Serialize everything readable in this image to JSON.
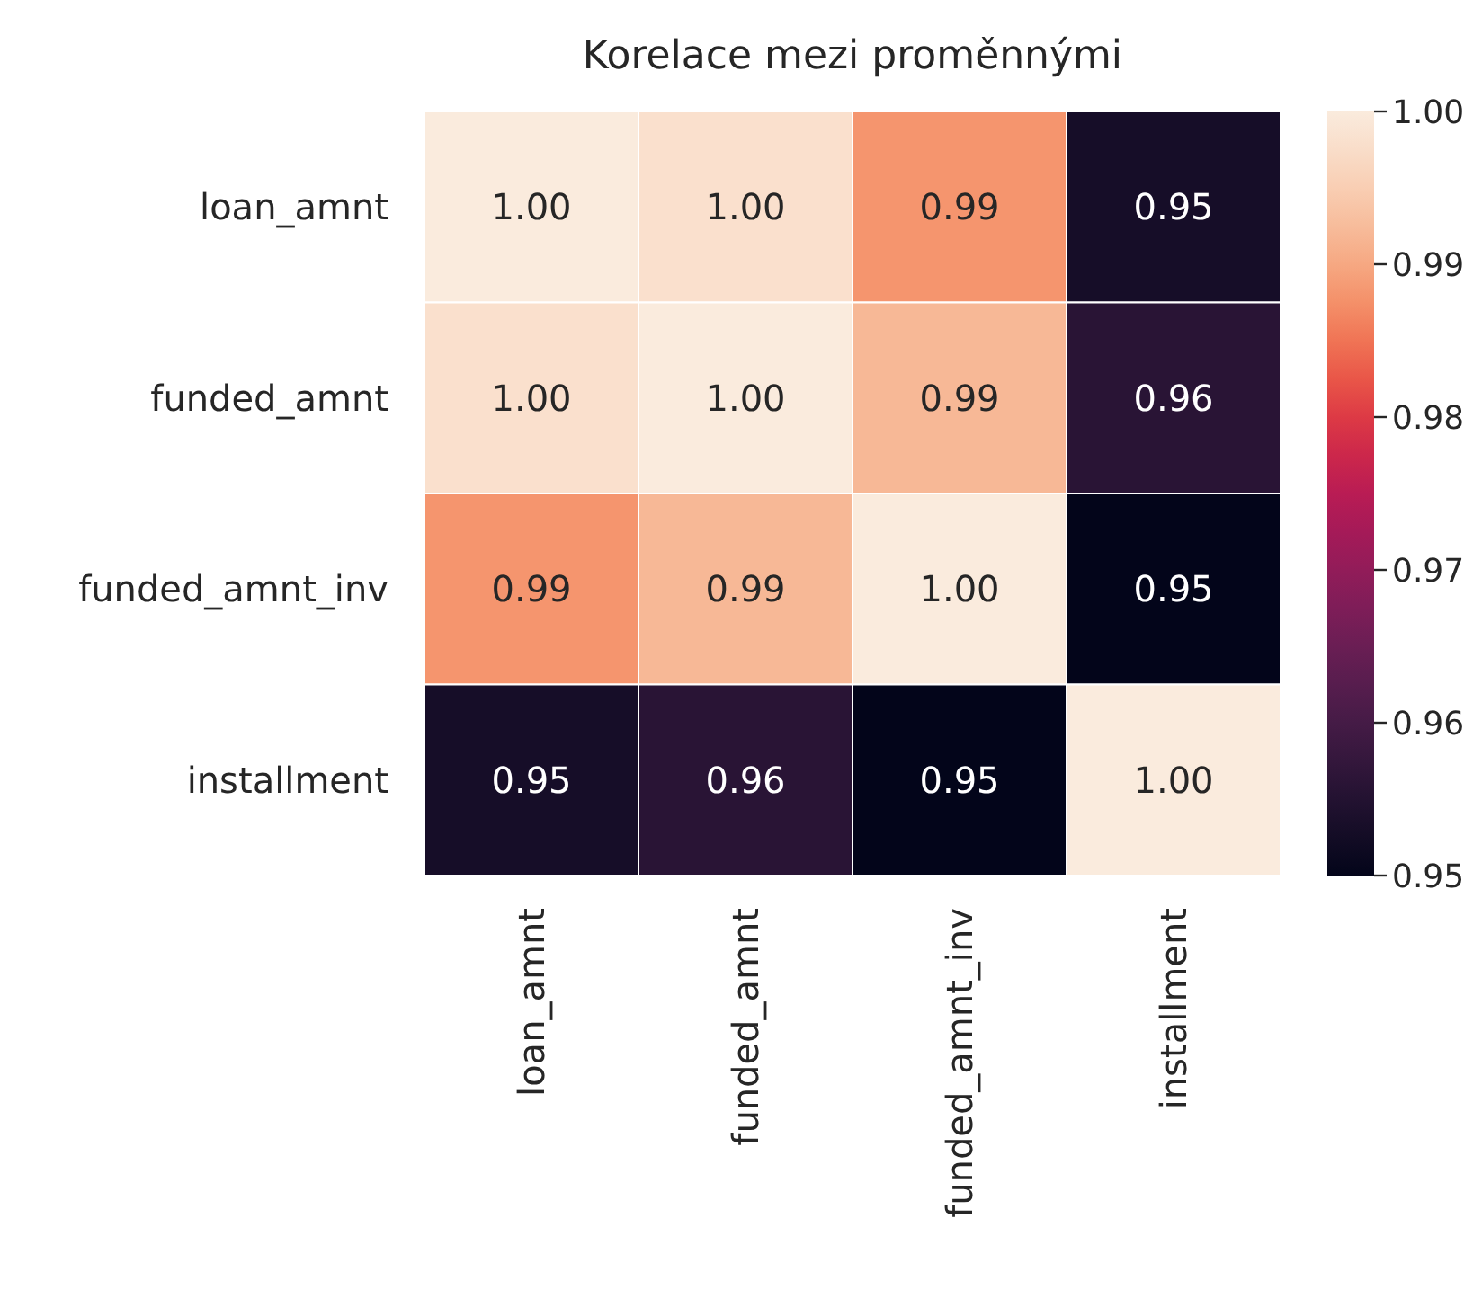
{
  "chart_data": {
    "type": "heatmap",
    "title": "Korelace mezi proměnnými",
    "categories": [
      "loan_amnt",
      "funded_amnt",
      "funded_amnt_inv",
      "installment"
    ],
    "y_categories": [
      "loan_amnt",
      "funded_amnt",
      "funded_amnt_inv",
      "installment"
    ],
    "cells": [
      [
        1.0,
        0.998,
        0.988,
        0.953
      ],
      [
        0.998,
        1.0,
        0.992,
        0.956
      ],
      [
        0.988,
        0.992,
        1.0,
        0.95
      ],
      [
        0.953,
        0.956,
        0.95,
        1.0
      ]
    ],
    "cell_labels": [
      [
        "1.00",
        "1.00",
        "0.99",
        "0.95"
      ],
      [
        "1.00",
        "1.00",
        "0.99",
        "0.96"
      ],
      [
        "0.99",
        "0.99",
        "1.00",
        "0.95"
      ],
      [
        "0.95",
        "0.96",
        "0.95",
        "1.00"
      ]
    ],
    "clim": [
      0.95,
      1.0
    ],
    "cticks": [
      {
        "value": 0.95,
        "label": "0.95"
      },
      {
        "value": 0.96,
        "label": "0.96"
      },
      {
        "value": 0.97,
        "label": "0.97"
      },
      {
        "value": 0.98,
        "label": "0.98"
      },
      {
        "value": 0.99,
        "label": "0.99"
      },
      {
        "value": 1.0,
        "label": "1.00"
      }
    ]
  }
}
